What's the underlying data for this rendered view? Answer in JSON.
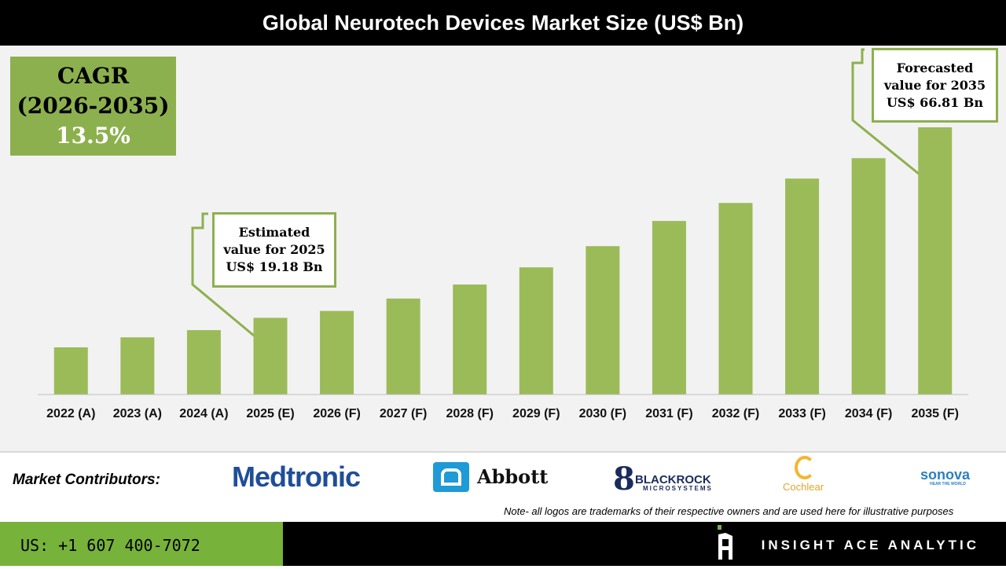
{
  "title": "Global Neurotech Devices Market Size (US$ Bn)",
  "cagr": {
    "label": "CAGR",
    "period": "(2026-2035)",
    "value": "13.5%"
  },
  "callouts": {
    "estimated": {
      "l1": "Estimated",
      "l2": "value for 2025",
      "l3": "US$ 19.18 Bn"
    },
    "forecasted": {
      "l1": "Forecasted",
      "l2": "value for 2035",
      "l3": "US$ 66.81 Bn"
    }
  },
  "chart_data": {
    "type": "bar",
    "title": "Global Neurotech Devices Market Size (US$ Bn)",
    "categories": [
      "2022 (A)",
      "2023 (A)",
      "2024 (A)",
      "2025 (E)",
      "2026 (F)",
      "2027 (F)",
      "2028 (F)",
      "2029 (F)",
      "2030 (F)",
      "2031 (F)",
      "2032 (F)",
      "2033 (F)",
      "2034 (F)",
      "2035 (F)"
    ],
    "values": [
      11.8,
      14.3,
      16.1,
      19.18,
      20.9,
      24.0,
      27.5,
      31.8,
      37.1,
      43.4,
      47.9,
      54.0,
      59.1,
      66.81
    ],
    "ylim": [
      0,
      66.81
    ],
    "grid": false,
    "bar_color": "#9bbb59"
  },
  "footer": {
    "contributors_label": "Market Contributors:",
    "logos": [
      "Medtronic",
      "Abbott",
      "BLACKROCK",
      "MICROSYSTEMS",
      "Cochlear",
      "sonova",
      "HEAR THE WORLD"
    ],
    "note": "Note- all logos are trademarks of their respective owners and are used here for illustrative purposes",
    "phone": "US: +1 607 400-7072",
    "brand": "INSIGHT ACE ANALYTIC"
  }
}
